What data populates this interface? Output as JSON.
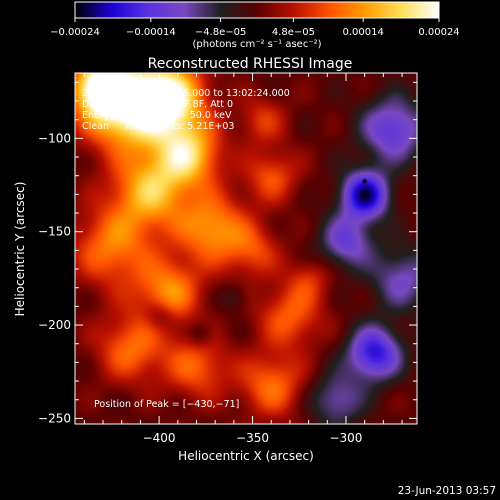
{
  "chart_data": {
    "type": "heatmap",
    "title": "Reconstructed RHESSI Image",
    "xlabel": "Heliocentric X (arcsec)",
    "ylabel": "Heliocentric Y (arcsec)",
    "xlim": [
      -445,
      -262
    ],
    "ylim": [
      -253,
      -65
    ],
    "x_ticks": [
      {
        "value": -400,
        "label": "−400"
      },
      {
        "value": -350,
        "label": "−350"
      },
      {
        "value": -300,
        "label": "−300"
      }
    ],
    "y_ticks": [
      {
        "value": -100,
        "label": "−100"
      },
      {
        "value": -150,
        "label": "−150"
      },
      {
        "value": -200,
        "label": "−200"
      },
      {
        "value": -250,
        "label": "−250"
      }
    ],
    "colorbar": {
      "range": [
        -0.00024,
        0.00024
      ],
      "tick_values": [
        -0.00024,
        -0.00014,
        -4.8e-05,
        4.8e-05,
        0.00014,
        0.00024
      ],
      "tick_labels": [
        "−0.00024",
        "−0.00014",
        "−4.8e−05",
        "4.8e−05",
        "0.00014",
        "0.00024"
      ],
      "unit_label": "(photons cm⁻² s⁻¹ asec⁻²)",
      "colormap": [
        "#000000",
        "#1c00d6",
        "#5a32e0",
        "#7848c0",
        "#202020",
        "#5a0000",
        "#b81000",
        "#ff5200",
        "#ffa000",
        "#ffe060",
        "#ffffff"
      ]
    },
    "info_lines": [
      "23-Dec-2004 12:59:56.000 to 13:02:24.000",
      "Detectors: 4F 5F 6F 7F 8F, Att 0",
      "Energy Range: 25.0 − 50.0 keV",
      "Clean     Total counts: 5.21E+03"
    ],
    "peak_text": "Position of Peak = [−430,−71]",
    "peak": {
      "x": -430,
      "y": -71
    },
    "footer_date": "23-Jun-2013 03:57",
    "image_blobs": [
      {
        "x": -418,
        "y": -82,
        "value": 0.00024,
        "sigma": 16
      },
      {
        "x": -432,
        "y": -72,
        "value": 0.0002,
        "sigma": 10
      },
      {
        "x": -395,
        "y": -78,
        "value": 0.00022,
        "sigma": 13
      },
      {
        "x": -385,
        "y": -108,
        "value": 0.00018,
        "sigma": 12
      },
      {
        "x": -405,
        "y": -128,
        "value": 0.00016,
        "sigma": 14
      },
      {
        "x": -372,
        "y": -148,
        "value": 0.00014,
        "sigma": 13
      },
      {
        "x": -425,
        "y": -158,
        "value": 0.00012,
        "sigma": 15
      },
      {
        "x": -395,
        "y": -182,
        "value": 0.00013,
        "sigma": 12
      },
      {
        "x": -415,
        "y": -212,
        "value": 0.00011,
        "sigma": 13
      },
      {
        "x": -380,
        "y": -222,
        "value": 0.0001,
        "sigma": 12
      },
      {
        "x": -340,
        "y": -232,
        "value": 0.00011,
        "sigma": 12
      },
      {
        "x": -330,
        "y": -195,
        "value": 0.0001,
        "sigma": 12
      },
      {
        "x": -350,
        "y": -160,
        "value": 8e-05,
        "sigma": 10
      },
      {
        "x": -340,
        "y": -120,
        "value": 9e-05,
        "sigma": 10
      },
      {
        "x": -345,
        "y": -90,
        "value": 7e-05,
        "sigma": 9
      },
      {
        "x": -320,
        "y": -175,
        "value": 6e-05,
        "sigma": 8
      },
      {
        "x": -290,
        "y": -130,
        "value": -0.00021,
        "sigma": 9
      },
      {
        "x": -275,
        "y": -95,
        "value": -0.00014,
        "sigma": 12
      },
      {
        "x": -300,
        "y": -155,
        "value": -0.00012,
        "sigma": 10
      },
      {
        "x": -285,
        "y": -215,
        "value": -0.00018,
        "sigma": 10
      },
      {
        "x": -305,
        "y": -240,
        "value": -0.0001,
        "sigma": 10
      },
      {
        "x": -270,
        "y": -175,
        "value": -0.0001,
        "sigma": 12
      },
      {
        "x": -400,
        "y": -195,
        "value": -6e-05,
        "sigma": 6
      },
      {
        "x": -378,
        "y": -205,
        "value": -5e-05,
        "sigma": 5
      },
      {
        "x": -360,
        "y": -185,
        "value": -4e-05,
        "sigma": 5
      }
    ]
  }
}
